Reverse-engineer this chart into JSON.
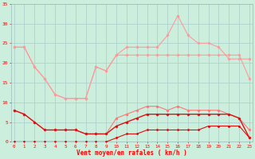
{
  "x": [
    0,
    1,
    2,
    3,
    4,
    5,
    6,
    7,
    8,
    9,
    10,
    11,
    12,
    13,
    14,
    15,
    16,
    17,
    18,
    19,
    20,
    21,
    22,
    23
  ],
  "line_rafale_max": [
    24,
    24,
    19,
    16,
    12,
    11,
    11,
    11,
    19,
    18,
    22,
    24,
    24,
    24,
    24,
    27,
    32,
    27,
    25,
    25,
    24,
    21,
    21,
    21
  ],
  "line_rafale_flat": [
    24,
    24,
    19,
    16,
    12,
    11,
    11,
    11,
    19,
    18,
    22,
    22,
    22,
    22,
    22,
    22,
    22,
    22,
    22,
    22,
    22,
    22,
    22,
    16
  ],
  "line_moy_high": [
    8,
    7,
    5,
    3,
    3,
    3,
    3,
    2,
    2,
    2,
    6,
    7,
    8,
    9,
    9,
    8,
    9,
    8,
    8,
    8,
    8,
    7,
    6,
    3
  ],
  "line_moy_low": [
    8,
    7,
    5,
    3,
    3,
    3,
    3,
    2,
    2,
    2,
    4,
    5,
    6,
    7,
    7,
    7,
    7,
    7,
    7,
    7,
    7,
    7,
    6,
    1
  ],
  "line_bottom": [
    0,
    0,
    0,
    0,
    0,
    0,
    0,
    0,
    0,
    0,
    1,
    2,
    2,
    3,
    3,
    3,
    3,
    3,
    3,
    4,
    4,
    4,
    4,
    1
  ],
  "background_color": "#cceedd",
  "grid_color": "#aacccc",
  "color_light_pink": "#ff9999",
  "color_mid_pink": "#ff7777",
  "color_dark_red": "#dd1111",
  "color_red": "#ee2222",
  "xlabel": "Vent moyen/en rafales ( km/h )",
  "ylim": [
    0,
    35
  ],
  "yticks": [
    0,
    5,
    10,
    15,
    20,
    25,
    30,
    35
  ],
  "xlim": [
    -0.3,
    23.3
  ]
}
